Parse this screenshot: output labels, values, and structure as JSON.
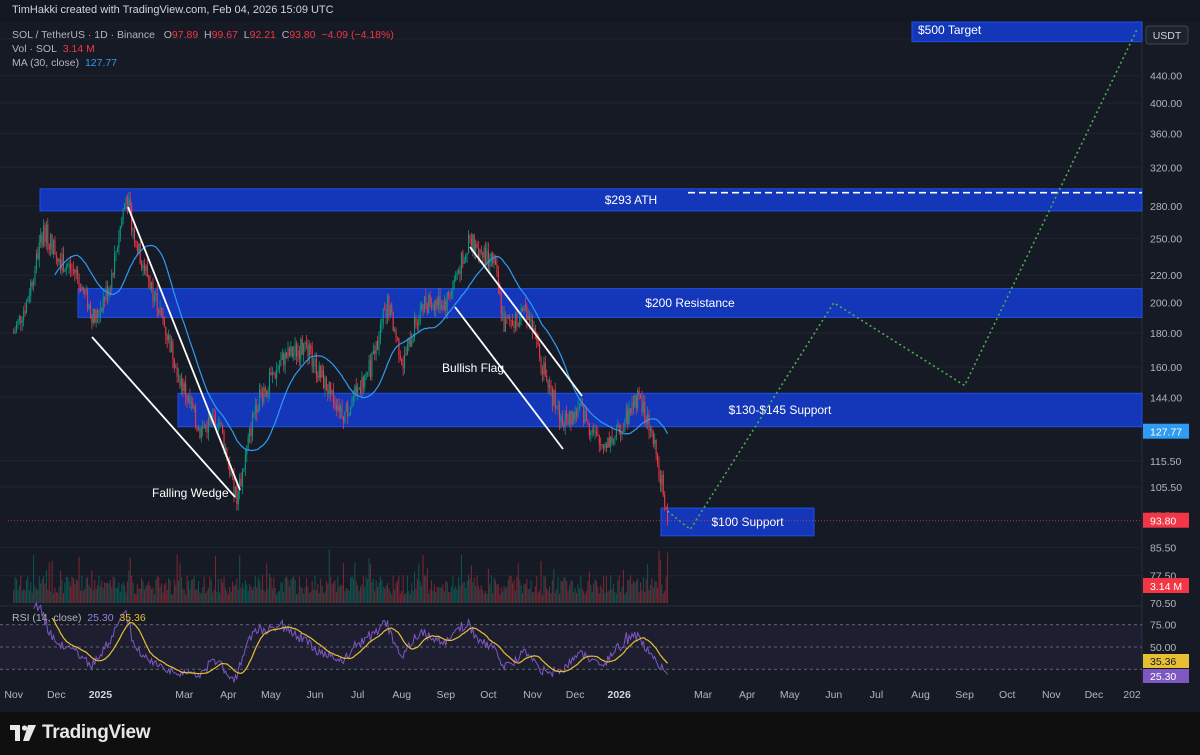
{
  "header": {
    "credit": "TimHakki created with TradingView.com, Feb 04, 2026 15:09 UTC"
  },
  "legend": {
    "symbol": "SOL / TetherUS · 1D · Binance",
    "o_label": "O",
    "o": "97.89",
    "h_label": "H",
    "h": "99.67",
    "l_label": "L",
    "l": "92.21",
    "c_label": "C",
    "c": "93.80",
    "change": "−4.09 (−4.18%)",
    "vol_label": "Vol · SOL",
    "vol": "3.14 M",
    "ma_label": "MA (30, close)",
    "ma": "127.77",
    "rsi_label": "RSI (14, close)",
    "rsi": "25.30",
    "rsi_ma": "35.36"
  },
  "currency_button": "USDT",
  "brand": "TradingView",
  "colors": {
    "bg": "#161a25",
    "zone": "#1439c4",
    "zone_border": "#1e50e6",
    "up": "#089981",
    "down": "#f23645",
    "ma": "#2f9bf2",
    "rsi": "#7e57c2",
    "rsi_ma": "#e6c032",
    "projection": "#4caf50"
  },
  "chart_data": {
    "type": "candlestick",
    "price_axis": {
      "scale": "log",
      "range": [
        70,
        530
      ],
      "ticks": [
        "500.00",
        "440.00",
        "400.00",
        "360.00",
        "320.00",
        "280.00",
        "250.00",
        "220.00",
        "200.00",
        "180.00",
        "160.00",
        "144.00",
        "127.77",
        "115.50",
        "105.50",
        "95.50",
        "93.80",
        "85.50",
        "77.50",
        "70.50"
      ],
      "current_price": "93.80",
      "ma_value": "127.77",
      "volume_value": "3.14 M"
    },
    "time_axis": [
      "Nov",
      "Dec",
      "2025",
      "Mar",
      "Apr",
      "May",
      "Jun",
      "Jul",
      "Aug",
      "Sep",
      "Oct",
      "Nov",
      "Dec",
      "2026",
      "Mar",
      "Apr",
      "May",
      "Jun",
      "Jul",
      "Aug",
      "Sep",
      "Oct",
      "Nov",
      "Dec",
      "202"
    ],
    "rsi_axis": [
      "75.00",
      "50.00",
      "35.36",
      "25.30"
    ],
    "zones": [
      {
        "label": "$500 Target",
        "low": 495,
        "high": 530
      },
      {
        "label": "$293 ATH",
        "low": 275,
        "high": 297
      },
      {
        "label": "$200 Resistance",
        "low": 190,
        "high": 210
      },
      {
        "label": "$130-$145 Support",
        "low": 130,
        "high": 146
      },
      {
        "label": "$100 Support",
        "low": 89,
        "high": 98
      }
    ],
    "annotations": [
      "Falling Wedge",
      "Bullish Flag"
    ],
    "ath_level": 293,
    "projection_path": [
      {
        "date": "2026-02-04",
        "price": 97
      },
      {
        "date": "2026-02-20",
        "price": 91
      },
      {
        "date": "2026-06-01",
        "price": 200
      },
      {
        "date": "2026-09-01",
        "price": 150
      },
      {
        "date": "2026-12-31",
        "price": 515
      }
    ],
    "price_path": [
      {
        "date": "2024-11-01",
        "price": 180
      },
      {
        "date": "2024-11-10",
        "price": 200
      },
      {
        "date": "2024-11-22",
        "price": 258
      },
      {
        "date": "2024-12-05",
        "price": 230
      },
      {
        "date": "2024-12-15",
        "price": 222
      },
      {
        "date": "2024-12-28",
        "price": 188
      },
      {
        "date": "2025-01-08",
        "price": 215
      },
      {
        "date": "2025-01-19",
        "price": 290
      },
      {
        "date": "2025-01-28",
        "price": 238
      },
      {
        "date": "2025-02-10",
        "price": 200
      },
      {
        "date": "2025-02-28",
        "price": 150
      },
      {
        "date": "2025-03-12",
        "price": 128
      },
      {
        "date": "2025-03-25",
        "price": 135
      },
      {
        "date": "2025-04-07",
        "price": 100
      },
      {
        "date": "2025-04-20",
        "price": 140
      },
      {
        "date": "2025-05-10",
        "price": 165
      },
      {
        "date": "2025-05-25",
        "price": 172
      },
      {
        "date": "2025-06-10",
        "price": 148
      },
      {
        "date": "2025-06-22",
        "price": 136
      },
      {
        "date": "2025-07-10",
        "price": 160
      },
      {
        "date": "2025-07-22",
        "price": 200
      },
      {
        "date": "2025-08-02",
        "price": 162
      },
      {
        "date": "2025-08-15",
        "price": 200
      },
      {
        "date": "2025-09-01",
        "price": 200
      },
      {
        "date": "2025-09-18",
        "price": 248
      },
      {
        "date": "2025-10-05",
        "price": 230
      },
      {
        "date": "2025-10-12",
        "price": 185
      },
      {
        "date": "2025-10-28",
        "price": 195
      },
      {
        "date": "2025-11-10",
        "price": 155
      },
      {
        "date": "2025-11-22",
        "price": 132
      },
      {
        "date": "2025-12-05",
        "price": 138
      },
      {
        "date": "2025-12-18",
        "price": 122
      },
      {
        "date": "2025-12-30",
        "price": 126
      },
      {
        "date": "2026-01-14",
        "price": 145
      },
      {
        "date": "2026-01-24",
        "price": 126
      },
      {
        "date": "2026-02-01",
        "price": 105
      },
      {
        "date": "2026-02-04",
        "price": 93.8
      }
    ]
  }
}
